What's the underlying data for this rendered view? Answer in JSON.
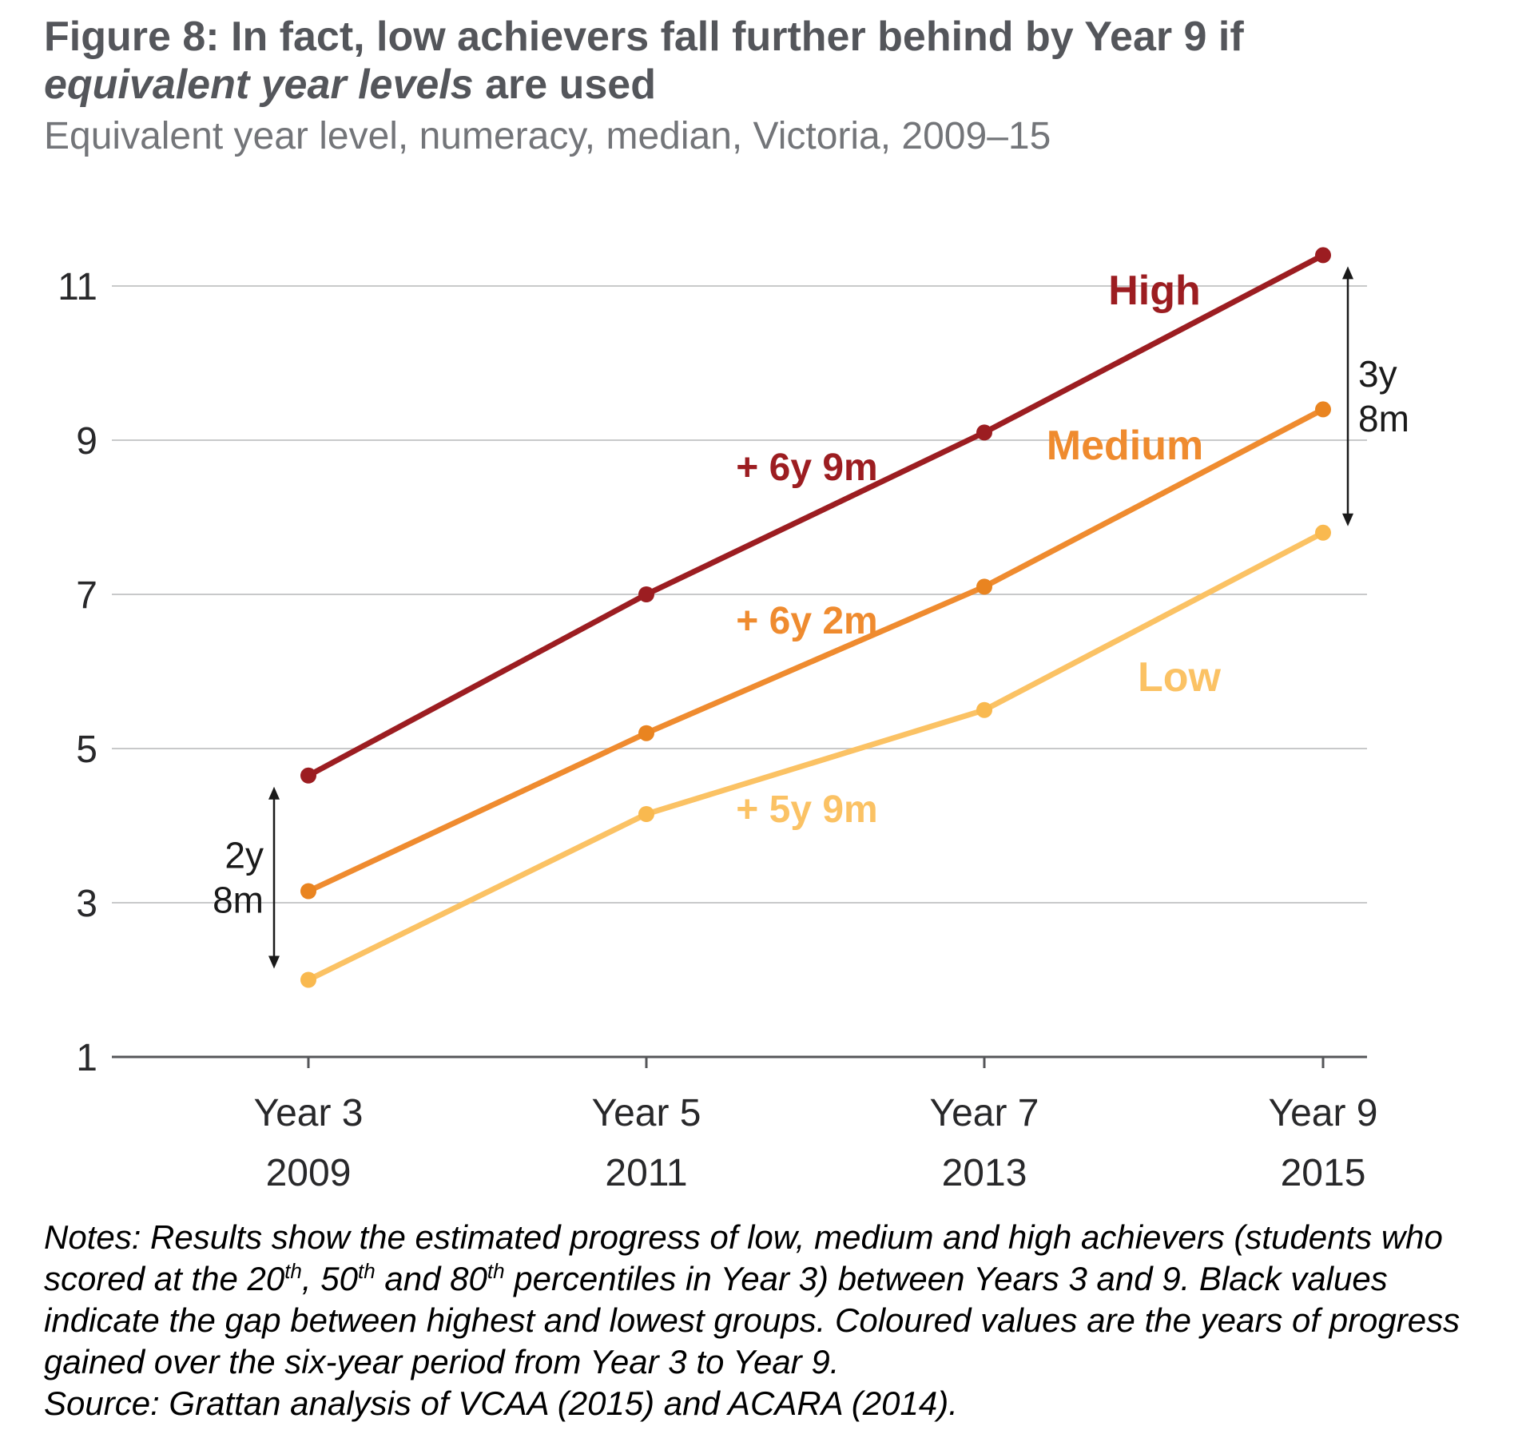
{
  "figure": {
    "title_lines": [
      {
        "segments": [
          {
            "text": "Figure 8: In fact, low achievers fall further behind by Year 9 if",
            "italic": false
          }
        ]
      },
      {
        "segments": [
          {
            "text": "equivalent year levels",
            "italic": true
          },
          {
            "text": " are used",
            "italic": false
          }
        ]
      }
    ],
    "subtitle": "Equivalent year level, numeracy, median, Victoria, 2009–15"
  },
  "chart_data": {
    "type": "line",
    "title": "Figure 8: In fact, low achievers fall further behind by Year 9 if equivalent year levels are used",
    "subtitle": "Equivalent year level, numeracy, median, Victoria, 2009–15",
    "xlabel": "",
    "ylabel": "",
    "ylim": [
      1,
      11
    ],
    "yticks": [
      1,
      3,
      5,
      7,
      9,
      11
    ],
    "grid": "horizontal",
    "legend_position": "inline-labels",
    "categories": [
      {
        "line1": "Year 3",
        "line2": "2009"
      },
      {
        "line1": "Year 5",
        "line2": "2011"
      },
      {
        "line1": "Year 7",
        "line2": "2013"
      },
      {
        "line1": "Year 9",
        "line2": "2015"
      }
    ],
    "series": [
      {
        "name": "High",
        "color": "#9c1d21",
        "point_color": "#9c1d21",
        "values": [
          4.65,
          7.0,
          9.1,
          11.4
        ],
        "growth_label": "+ 6y 9m"
      },
      {
        "name": "Medium",
        "color": "#ef8b2f",
        "point_color": "#e98420",
        "values": [
          3.15,
          5.2,
          7.1,
          9.4
        ],
        "growth_label": "+ 6y 2m"
      },
      {
        "name": "Low",
        "color": "#fbc264",
        "point_color": "#f9b94f",
        "values": [
          2.0,
          4.15,
          5.5,
          7.8
        ],
        "growth_label": "+ 5y 9m"
      }
    ],
    "gap_annotations": [
      {
        "id": "gap-year3",
        "lines": [
          "2y",
          "8m"
        ],
        "side": "left",
        "meaning": "gap between High and Low at Year 3"
      },
      {
        "id": "gap-year9",
        "lines": [
          "3y",
          "8m"
        ],
        "side": "right",
        "meaning": "gap between High and Low at Year 9"
      }
    ],
    "colors": {
      "grid": "#c8c9ca",
      "axis": "#555659",
      "tick_text": "#28282a",
      "annotation_black": "#1a1a1a"
    }
  },
  "notes": {
    "segments": [
      {
        "text": "Notes: Results show the estimated progress of low, medium and high achievers (students who scored at the 20"
      },
      {
        "text": "th",
        "sup": true
      },
      {
        "text": ", 50"
      },
      {
        "text": "th",
        "sup": true
      },
      {
        "text": " and 80"
      },
      {
        "text": "th",
        "sup": true
      },
      {
        "text": " percentiles in Year 3) between Years 3 and 9. Black values indicate the gap between highest and lowest groups. Coloured values are the years of progress gained over the six-year period from Year 3 to Year 9."
      }
    ],
    "source": "Source: Grattan analysis of VCAA (2015) and ACARA (2014)."
  }
}
